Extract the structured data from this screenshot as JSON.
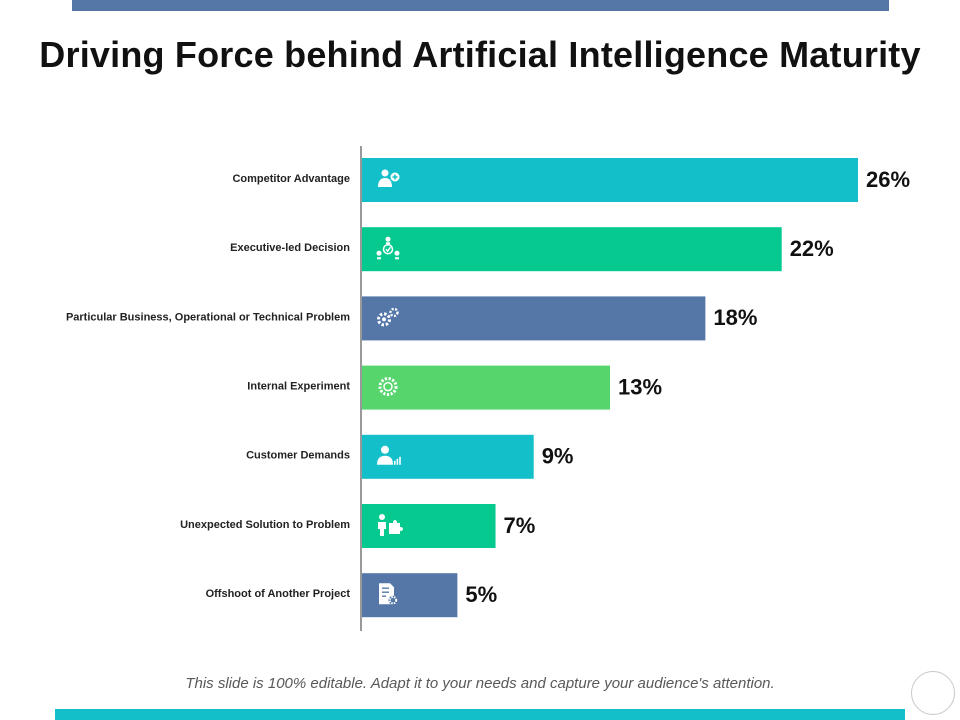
{
  "slide": {
    "title": "Driving Force behind Artificial Intelligence Maturity",
    "footer": "This slide is 100% editable. Adapt it to your needs and capture your audience's attention."
  },
  "colors": {
    "top_bar": "#5477a8",
    "bottom_bar": "#13bfc8",
    "palette": [
      "#13bfc8",
      "#06c98f",
      "#5477a8",
      "#56d56d",
      "#13bfc8",
      "#06c98f",
      "#5477a8"
    ]
  },
  "chart_data": {
    "type": "bar",
    "orientation": "horizontal",
    "title": "Driving Force behind Artificial Intelligence Maturity",
    "xlabel": "",
    "ylabel": "",
    "xlim": [
      0,
      26
    ],
    "grid": false,
    "categories": [
      "Competitor Advantage",
      "Executive-led Decision",
      "Particular Business, Operational or Technical Problem",
      "Internal Experiment",
      "Customer Demands",
      "Unexpected Solution to Problem",
      "Offshoot of Another Project"
    ],
    "values": [
      26,
      22,
      18,
      13,
      9,
      7,
      5
    ],
    "value_labels": [
      "26%",
      "22%",
      "18%",
      "13%",
      "9%",
      "7%",
      "5%"
    ],
    "bar_icons": [
      "person-plus-icon",
      "team-check-icon",
      "gears-icon",
      "gear-cog-icon",
      "person-chart-icon",
      "person-puzzle-icon",
      "document-gear-icon"
    ]
  }
}
